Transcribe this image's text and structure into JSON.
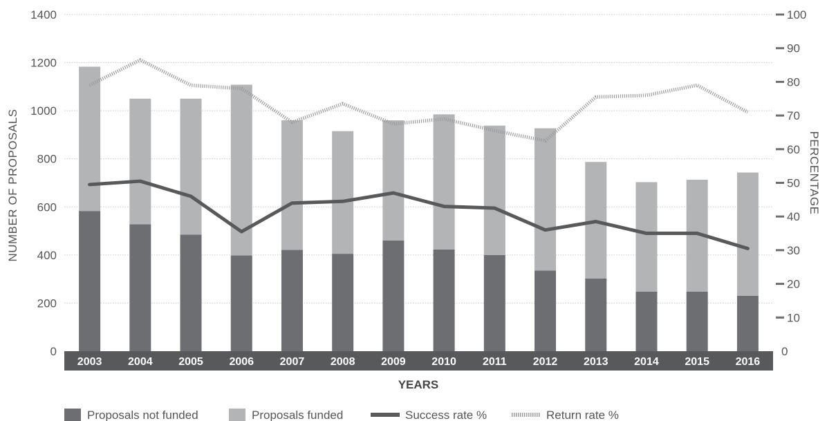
{
  "chart_data": {
    "type": "bar",
    "categories": [
      "2003",
      "2004",
      "2005",
      "2006",
      "2007",
      "2008",
      "2009",
      "2010",
      "2011",
      "2012",
      "2013",
      "2014",
      "2015",
      "2016"
    ],
    "xlabel": "YEARS",
    "ylabel": "NUMBER OF PROPOSALS",
    "ylabel_right": "PERCENTAGE",
    "ylim": [
      0,
      1400
    ],
    "yticks": [
      "0",
      "200",
      "400",
      "600",
      "800",
      "1000",
      "1200",
      "1400"
    ],
    "ylim_right": [
      0,
      100
    ],
    "yticks_right": [
      "0",
      "10",
      "20",
      "30",
      "40",
      "50",
      "60",
      "70",
      "80",
      "90",
      "100"
    ],
    "grid": true,
    "series": [
      {
        "name": "Proposals not funded",
        "type": "bar",
        "stack": "proposals",
        "axis": "left",
        "values": [
          583,
          528,
          485,
          398,
          421,
          405,
          460,
          423,
          400,
          335,
          302,
          248,
          248,
          230
        ]
      },
      {
        "name": "Proposals funded",
        "type": "bar",
        "stack": "proposals",
        "axis": "left",
        "values": [
          600,
          522,
          565,
          710,
          539,
          510,
          500,
          562,
          538,
          592,
          485,
          455,
          465,
          513
        ]
      },
      {
        "name": "Success rate %",
        "type": "line",
        "axis": "right",
        "values": [
          49.5,
          50.5,
          46,
          35.5,
          44,
          44.5,
          47,
          43,
          42.5,
          36,
          38.5,
          35,
          35,
          30.5
        ]
      },
      {
        "name": "Return rate %",
        "type": "line",
        "axis": "right",
        "style": "dotted",
        "values": [
          79,
          86.5,
          79,
          78,
          68,
          73.5,
          67.5,
          69,
          65.5,
          62.5,
          75.5,
          76,
          79,
          71
        ]
      }
    ],
    "colors": {
      "not_funded": "#6d6e71",
      "funded": "#b2b4b6",
      "success": "#58595b",
      "return": "#9a9c9e",
      "year_band": "#58595b"
    },
    "legend_position": "bottom"
  }
}
